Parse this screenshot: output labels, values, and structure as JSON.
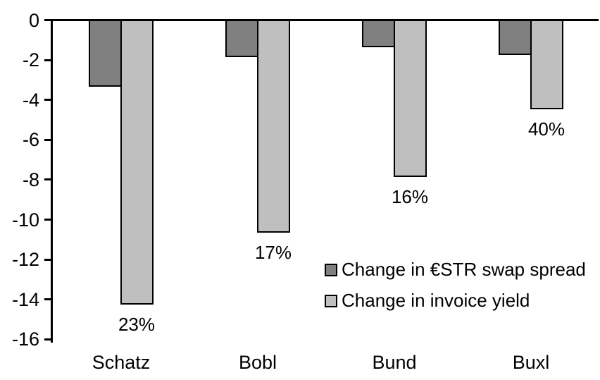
{
  "chart_data": {
    "type": "bar",
    "categories": [
      "Schatz",
      "Bobl",
      "Bund",
      "Buxl"
    ],
    "series": [
      {
        "name": "Change in €STR swap spread",
        "values": [
          -3.3,
          -1.8,
          -1.3,
          -1.7
        ],
        "color": "#808080"
      },
      {
        "name": "Change in invoice yield",
        "values": [
          -14.2,
          -10.6,
          -7.8,
          -4.4
        ],
        "color": "#BFBFBF"
      }
    ],
    "bar_labels": {
      "series": "Change in invoice yield",
      "values": [
        "23%",
        "17%",
        "16%",
        "40%"
      ]
    },
    "yticks": [
      0,
      -2,
      -4,
      -6,
      -8,
      -10,
      -12,
      -14,
      -16
    ],
    "ylim": [
      -16,
      0
    ],
    "xlabel": "",
    "ylabel": "",
    "title": "",
    "grid": false,
    "legend_position": "inside-right",
    "bar_outline_color": "#000000",
    "axis_color": "#000000",
    "background_color": "#FFFFFF"
  }
}
